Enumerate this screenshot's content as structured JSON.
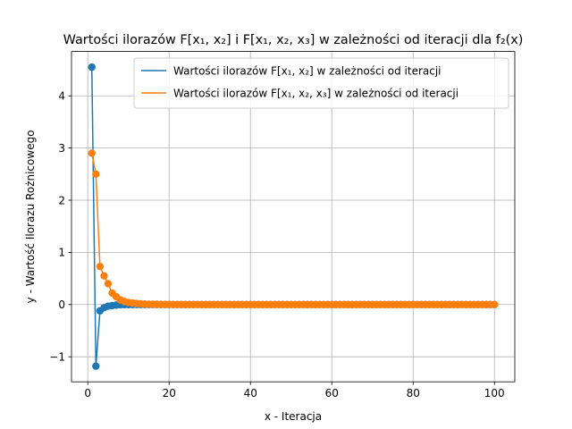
{
  "chart_data": {
    "type": "line",
    "title": "Wartości ilorazów F[x₁, x₂] i F[x₁, x₂, x₃] w zależności od iteracji dla f₂(x)",
    "xlabel": "x - Iteracja",
    "ylabel": "y - Wartość Ilorazu Rożnicowego",
    "xlim": [
      -4,
      105
    ],
    "ylim": [
      -1.48,
      4.85
    ],
    "xticks": [
      0,
      20,
      40,
      60,
      80,
      100
    ],
    "xtick_labels": [
      "0",
      "20",
      "40",
      "60",
      "80",
      "100"
    ],
    "yticks": [
      -1,
      0,
      1,
      2,
      3,
      4
    ],
    "ytick_labels": [
      "−1",
      "0",
      "1",
      "2",
      "3",
      "4"
    ],
    "grid": true,
    "legend_position": "top-right",
    "x": [
      1,
      2,
      3,
      4,
      5,
      6,
      7,
      8,
      9,
      10,
      11,
      12,
      13,
      14,
      15,
      16,
      17,
      18,
      19,
      20,
      21,
      22,
      23,
      24,
      25,
      26,
      27,
      28,
      29,
      30,
      31,
      32,
      33,
      34,
      35,
      36,
      37,
      38,
      39,
      40,
      41,
      42,
      43,
      44,
      45,
      46,
      47,
      48,
      49,
      50,
      51,
      52,
      53,
      54,
      55,
      56,
      57,
      58,
      59,
      60,
      61,
      62,
      63,
      64,
      65,
      66,
      67,
      68,
      69,
      70,
      71,
      72,
      73,
      74,
      75,
      76,
      77,
      78,
      79,
      80,
      81,
      82,
      83,
      84,
      85,
      86,
      87,
      88,
      89,
      90,
      91,
      92,
      93,
      94,
      95,
      96,
      97,
      98,
      99,
      100
    ],
    "series": [
      {
        "name": "Wartości ilorazów F[x₁, x₂] w zależności od iteracji",
        "color": "#1f77b4",
        "values": [
          4.55,
          -1.18,
          -0.12,
          -0.06,
          -0.03,
          -0.02,
          -0.01,
          -0.005,
          -0.003,
          -0.002,
          -0.001,
          0,
          0,
          0,
          0,
          0,
          0,
          0,
          0,
          0,
          0,
          0,
          0,
          0,
          0,
          0,
          0,
          0,
          0,
          0,
          0,
          0,
          0,
          0,
          0,
          0,
          0,
          0,
          0,
          0,
          0,
          0,
          0,
          0,
          0,
          0,
          0,
          0,
          0,
          0,
          0,
          0,
          0,
          0,
          0,
          0,
          0,
          0,
          0,
          0,
          0,
          0,
          0,
          0,
          0,
          0,
          0,
          0,
          0,
          0,
          0,
          0,
          0,
          0,
          0,
          0,
          0,
          0,
          0,
          0,
          0,
          0,
          0,
          0,
          0,
          0,
          0,
          0,
          0,
          0,
          0,
          0,
          0,
          0,
          0,
          0,
          0,
          0,
          0,
          0
        ]
      },
      {
        "name": "Wartości ilorazów F[x₁, x₂, x₃] w zależności od iteracji",
        "color": "#ff7f0e",
        "values": [
          2.9,
          2.5,
          0.73,
          0.55,
          0.4,
          0.22,
          0.15,
          0.09,
          0.06,
          0.04,
          0.03,
          0.02,
          0.015,
          0.01,
          0.008,
          0.006,
          0.005,
          0.004,
          0.003,
          0.002,
          0.002,
          0.001,
          0.001,
          0.001,
          0,
          0,
          0,
          0,
          0,
          0,
          0,
          0,
          0,
          0,
          0,
          0,
          0,
          0,
          0,
          0,
          0,
          0,
          0,
          0,
          0,
          0,
          0,
          0,
          0,
          0,
          0,
          0,
          0,
          0,
          0,
          0,
          0,
          0,
          0,
          0,
          0,
          0,
          0,
          0,
          0,
          0,
          0,
          0,
          0,
          0,
          0,
          0,
          0,
          0,
          0,
          0,
          0,
          0,
          0,
          0,
          0,
          0,
          0,
          0,
          0,
          0,
          0,
          0,
          0,
          0,
          0,
          0,
          0,
          0,
          0,
          0,
          0,
          0,
          0,
          0
        ]
      }
    ]
  }
}
